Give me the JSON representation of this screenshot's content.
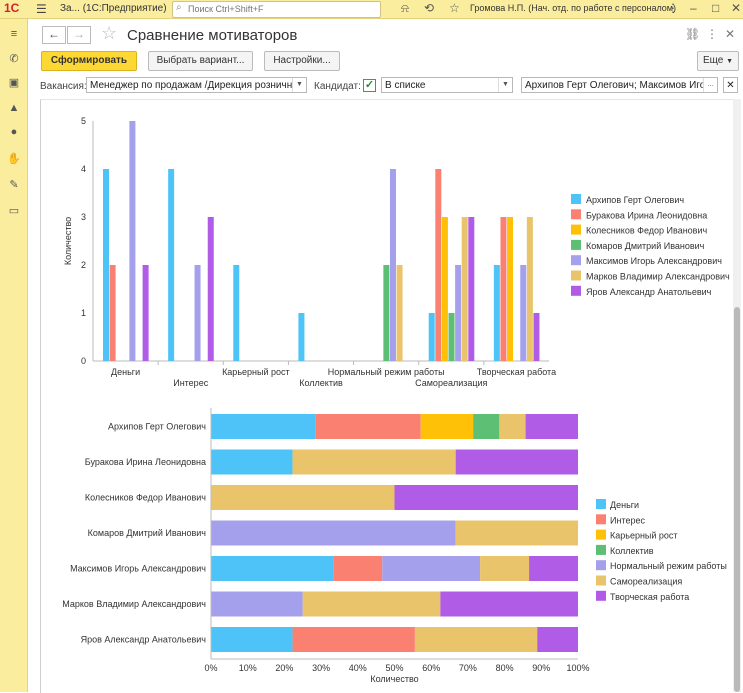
{
  "titlebar": {
    "logo": "1С",
    "app_title": "За...   (1С:Предприятие)",
    "search_placeholder": "Поиск Ctrl+Shift+F",
    "user": "Громова Н.П. (Нач. отд. по работе с персоналом)",
    "menu_icon": "hamburger-icon",
    "icons": [
      "bell-icon",
      "history-icon",
      "star-icon",
      "menu-dots-icon",
      "minimize-icon",
      "maximize-icon",
      "close-icon"
    ]
  },
  "sidebar": {
    "icons": [
      "menu-icon",
      "phone-icon",
      "gift-icon",
      "graduation-icon",
      "people-icon",
      "hand-icon",
      "wrench-icon",
      "card-icon"
    ]
  },
  "header": {
    "title": "Сравнение мотиваторов",
    "back": "←",
    "forward": "→"
  },
  "toolbar": {
    "generate": "Сформировать",
    "choose_variant": "Выбрать вариант...",
    "settings": "Настройки...",
    "more": "Еще"
  },
  "filters": {
    "vacancy_label": "Вакансия:",
    "vacancy_value": "Менеджер по продажам /Дирекция розничны",
    "candidate_label": "Кандидат:",
    "candidate_checked": true,
    "condition_value": "В списке",
    "candidates_value": "Архипов Герт Олегович; Максимов Игорь ..."
  },
  "colors": {
    "accent": "#fdd835",
    "titlebar_bg": "#fbed9e",
    "series": [
      "#4dc3f7",
      "#fa8072",
      "#ffc107",
      "#5cbf73",
      "#a5a0eb",
      "#e9c46a",
      "#b05ce6"
    ]
  },
  "chart_data": [
    {
      "type": "bar",
      "title": "",
      "xlabel": "",
      "ylabel": "Количество",
      "ylim": [
        0,
        5
      ],
      "yticks": [
        "0",
        "1",
        "2",
        "3",
        "4",
        "5"
      ],
      "categories": [
        "Деньги",
        "Интерес",
        "Карьерный рост",
        "Коллектив",
        "Нормальный режим работы",
        "Самореализация",
        "Творческая работа"
      ],
      "legend_position": "right",
      "series": [
        {
          "name": "Архипов Герт Олегович",
          "values": [
            4,
            4,
            2,
            1,
            0,
            1,
            2
          ]
        },
        {
          "name": "Буракова Ирина Леонидовна",
          "values": [
            2,
            0,
            0,
            0,
            0,
            4,
            3
          ]
        },
        {
          "name": "Колесников Федор Иванович",
          "values": [
            0,
            0,
            0,
            0,
            0,
            3,
            3
          ]
        },
        {
          "name": "Комаров Дмитрий Иванович",
          "values": [
            0,
            0,
            0,
            0,
            2,
            1,
            0
          ]
        },
        {
          "name": "Максимов Игорь Александрович",
          "values": [
            5,
            2,
            0,
            0,
            4,
            2,
            2
          ]
        },
        {
          "name": "Марков Владимир Александрович",
          "values": [
            0,
            0,
            0,
            0,
            2,
            3,
            3
          ]
        },
        {
          "name": "Яров Александр Анатольевич",
          "values": [
            2,
            3,
            0,
            0,
            0,
            3,
            1
          ]
        }
      ]
    },
    {
      "type": "bar",
      "orientation": "horizontal",
      "stacked": "percent",
      "title": "",
      "xlabel": "Количество",
      "ylabel": "",
      "xlim": [
        0,
        100
      ],
      "xticks": [
        "0%",
        "10%",
        "20%",
        "30%",
        "40%",
        "50%",
        "60%",
        "70%",
        "80%",
        "90%",
        "100%"
      ],
      "categories": [
        "Архипов Герт Олегович",
        "Буракова Ирина Леонидовна",
        "Колесников Федор Иванович",
        "Комаров Дмитрий Иванович",
        "Максимов Игорь Александрович",
        "Марков Владимир Александрович",
        "Яров Александр Анатольевич"
      ],
      "legend_position": "right",
      "series": [
        {
          "name": "Деньги",
          "values": [
            4,
            2,
            0,
            0,
            5,
            0,
            2
          ]
        },
        {
          "name": "Интерес",
          "values": [
            4,
            0,
            0,
            0,
            2,
            0,
            3
          ]
        },
        {
          "name": "Карьерный рост",
          "values": [
            2,
            0,
            0,
            0,
            0,
            0,
            0
          ]
        },
        {
          "name": "Коллектив",
          "values": [
            1,
            0,
            0,
            0,
            0,
            0,
            0
          ]
        },
        {
          "name": "Нормальный режим работы",
          "values": [
            0,
            0,
            0,
            2,
            4,
            2,
            0
          ]
        },
        {
          "name": "Самореализация",
          "values": [
            1,
            4,
            3,
            1,
            2,
            3,
            3
          ]
        },
        {
          "name": "Творческая работа",
          "values": [
            2,
            3,
            3,
            0,
            2,
            3,
            1
          ]
        }
      ]
    }
  ]
}
